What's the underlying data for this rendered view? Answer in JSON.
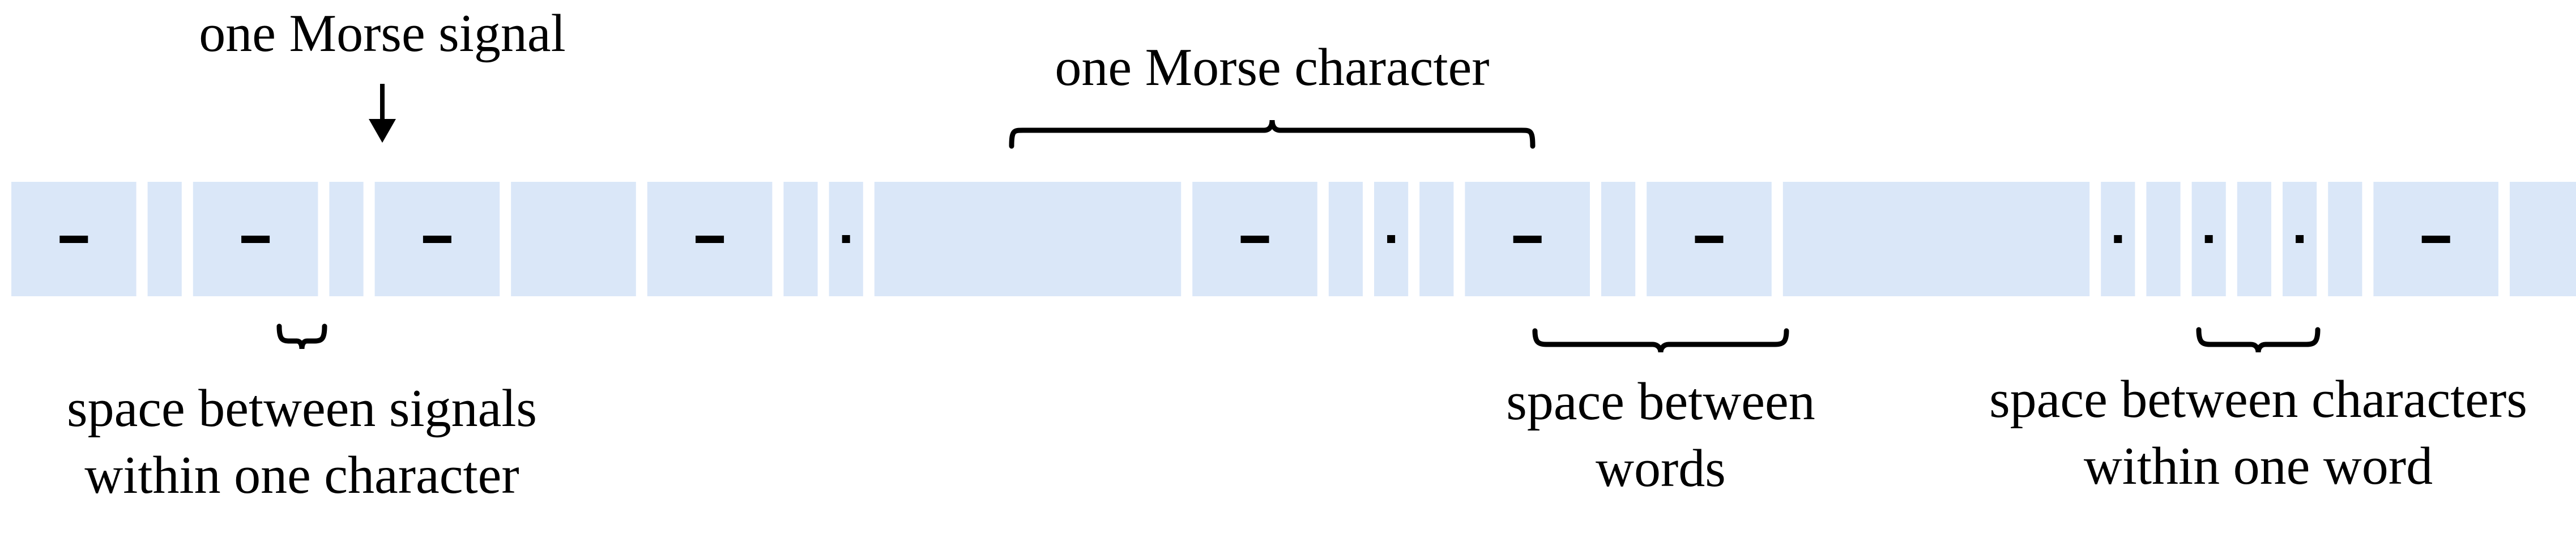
{
  "colors": {
    "cell": "#dae7f8",
    "ink": "#000000",
    "background": "#ffffff"
  },
  "sequence": [
    "-",
    " ",
    "-",
    " ",
    "-",
    "   ",
    "-",
    " ",
    ".",
    "       ",
    "-",
    " ",
    ".",
    " ",
    "-",
    " ",
    "-",
    "       ",
    ".",
    " ",
    ".",
    " ",
    ".",
    " ",
    "-",
    "   ",
    ".",
    " ",
    "-",
    "/"
  ],
  "labels": {
    "signal": "one Morse signal",
    "character": "one Morse character",
    "space_signals_1": "space between signals",
    "space_signals_2": "within one character",
    "space_words_1": "space between",
    "space_words_2": "words",
    "space_chars_1": "space between characters",
    "space_chars_2": "within one word"
  }
}
